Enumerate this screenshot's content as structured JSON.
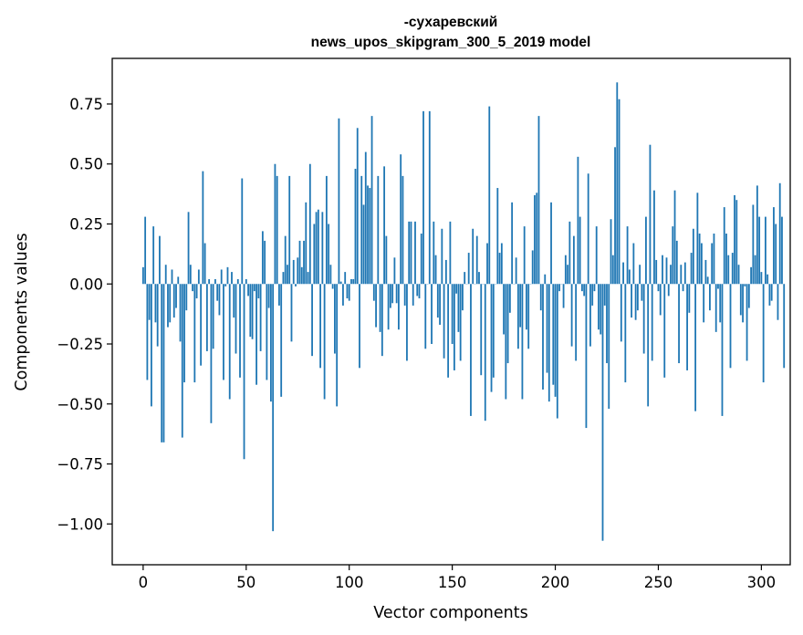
{
  "chart_data": {
    "type": "bar",
    "title": "-сухаревский",
    "subtitle": "news_upos_skipgram_300_5_2019 model",
    "xlabel": "Vector components",
    "ylabel": "Components values",
    "xlim": [
      -15,
      314
    ],
    "ylim": [
      -1.17,
      0.94
    ],
    "xticks": [
      0,
      50,
      100,
      150,
      200,
      250,
      300
    ],
    "xtick_labels": [
      "0",
      "50",
      "100",
      "150",
      "200",
      "250",
      "300"
    ],
    "yticks": [
      0.75,
      0.5,
      0.25,
      0.0,
      -0.25,
      -0.5,
      -0.75,
      -1.0
    ],
    "ytick_labels": [
      "0.75",
      "0.50",
      "0.25",
      "0.00",
      "−0.25",
      "−0.50",
      "−0.75",
      "−1.00"
    ],
    "grid": false,
    "bar_color": "#1f77b4",
    "values": [
      0.07,
      0.28,
      -0.4,
      -0.15,
      -0.51,
      0.24,
      -0.16,
      -0.26,
      0.2,
      -0.66,
      -0.66,
      0.08,
      -0.18,
      -0.16,
      0.06,
      -0.14,
      -0.1,
      0.03,
      -0.24,
      -0.64,
      -0.41,
      -0.11,
      0.3,
      0.08,
      -0.03,
      -0.41,
      -0.06,
      0.06,
      -0.34,
      0.47,
      0.17,
      -0.28,
      0.02,
      -0.58,
      -0.27,
      0.02,
      -0.07,
      -0.13,
      0.06,
      -0.4,
      -0.01,
      0.07,
      -0.48,
      0.05,
      -0.14,
      -0.29,
      0.02,
      -0.39,
      0.44,
      -0.73,
      0.02,
      -0.05,
      -0.22,
      -0.23,
      -0.03,
      -0.42,
      -0.06,
      -0.28,
      0.22,
      0.18,
      -0.4,
      -0.1,
      -0.49,
      -1.03,
      0.5,
      0.45,
      -0.09,
      -0.47,
      0.05,
      0.2,
      0.08,
      0.45,
      -0.24,
      0.1,
      -0.01,
      0.11,
      0.18,
      0.07,
      0.18,
      0.34,
      0.05,
      0.5,
      -0.3,
      0.25,
      0.3,
      0.31,
      -0.35,
      0.3,
      -0.48,
      0.45,
      0.25,
      0.08,
      -0.02,
      -0.29,
      -0.51,
      0.69,
      0.01,
      -0.09,
      0.05,
      -0.06,
      -0.07,
      0.02,
      0.02,
      0.48,
      0.65,
      -0.35,
      0.45,
      0.33,
      0.55,
      0.41,
      0.4,
      0.7,
      -0.07,
      -0.18,
      0.45,
      -0.2,
      -0.3,
      0.49,
      0.2,
      -0.19,
      -0.1,
      -0.08,
      0.11,
      -0.08,
      -0.19,
      0.54,
      0.45,
      -0.09,
      -0.32,
      0.26,
      0.26,
      -0.09,
      0.26,
      -0.05,
      -0.06,
      0.21,
      0.72,
      -0.27,
      0.0,
      0.72,
      -0.25,
      0.26,
      0.12,
      -0.14,
      -0.17,
      0.23,
      -0.31,
      0.1,
      -0.39,
      0.26,
      -0.25,
      -0.36,
      -0.04,
      -0.2,
      -0.32,
      -0.11,
      0.05,
      0.0,
      0.13,
      -0.55,
      0.23,
      0.0,
      0.2,
      0.05,
      -0.38,
      0.0,
      -0.57,
      0.17,
      0.74,
      -0.45,
      -0.39,
      0.0,
      0.4,
      0.13,
      0.17,
      -0.21,
      -0.48,
      -0.33,
      -0.12,
      0.34,
      0.0,
      0.11,
      -0.27,
      -0.18,
      -0.48,
      0.24,
      -0.19,
      -0.27,
      0.0,
      0.14,
      0.37,
      0.38,
      0.7,
      -0.11,
      -0.44,
      0.04,
      -0.37,
      -0.49,
      0.34,
      -0.42,
      -0.47,
      -0.56,
      -0.03,
      0.0,
      -0.1,
      0.12,
      0.08,
      0.26,
      -0.26,
      0.2,
      -0.32,
      0.53,
      0.28,
      -0.03,
      -0.05,
      -0.6,
      0.46,
      -0.26,
      -0.09,
      -0.03,
      0.24,
      -0.19,
      -0.21,
      -1.07,
      -0.09,
      -0.33,
      -0.52,
      0.27,
      0.12,
      0.57,
      0.84,
      0.77,
      -0.24,
      0.09,
      -0.41,
      0.24,
      0.06,
      -0.14,
      0.17,
      -0.15,
      -0.11,
      0.08,
      -0.07,
      -0.29,
      0.28,
      -0.51,
      0.58,
      -0.32,
      0.39,
      0.1,
      -0.03,
      -0.13,
      0.12,
      -0.39,
      0.11,
      -0.05,
      0.08,
      0.24,
      0.39,
      0.18,
      -0.33,
      0.08,
      -0.03,
      0.09,
      -0.36,
      -0.12,
      0.13,
      0.23,
      -0.53,
      0.38,
      0.21,
      0.17,
      -0.16,
      0.1,
      0.03,
      -0.11,
      0.17,
      0.21,
      -0.2,
      -0.02,
      -0.16,
      -0.55,
      0.32,
      0.21,
      0.12,
      -0.35,
      0.13,
      0.37,
      0.35,
      0.08,
      -0.13,
      -0.16,
      -0.01,
      -0.32,
      -0.1,
      0.07,
      0.33,
      0.12,
      0.41,
      0.28,
      0.05,
      -0.41,
      0.28,
      0.04,
      -0.09,
      -0.07,
      0.32,
      0.25,
      -0.15,
      0.42,
      0.28,
      -0.35
    ]
  }
}
